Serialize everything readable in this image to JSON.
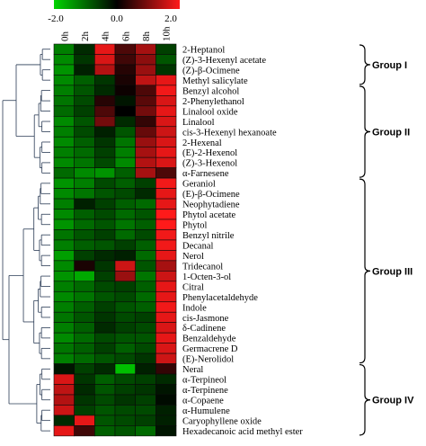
{
  "chart_data": {
    "type": "heatmap",
    "title": "",
    "xlabel": "",
    "ylabel": "",
    "scale": {
      "min": -2.0,
      "max": 2.0,
      "ticks": [
        "-2.0",
        "0.0",
        "2.0"
      ],
      "colors": {
        "low": "#00d400",
        "mid": "#000000",
        "high": "#ff1a1a"
      }
    },
    "columns": [
      "0h",
      "2h",
      "4h",
      "6h",
      "8h",
      "10h"
    ],
    "rows": [
      "2-Heptanol",
      "(Z)-3-Hexenyl acetate",
      "(Z)-β-Ocimene",
      "Methyl salicylate",
      "Benzyl alcohol",
      "2-Phenylethanol",
      "Linalool oxide",
      "Linalool",
      "cis-3-Hexenyl hexanoate",
      "2-Hexenal",
      "(E)-2-Hexenol",
      "(Z)-3-Hexenol",
      "α-Farnesene",
      "Geraniol",
      "(E)-β-Ocimene",
      "Neophytadiene",
      "Phytol acetate",
      "Phytol",
      "Benzyl nitrile",
      "Decanal",
      "Nerol",
      "Tridecanol",
      "1-Octen-3-ol",
      "Citral",
      "Phenylacetaldehyde",
      "Indole",
      "cis-Jasmone",
      "δ-Cadinene",
      "Benzaldehyde",
      "Germacrene D",
      "(E)-Nerolidol",
      "Neral",
      "α-Terpineol",
      "α-Terpinene",
      "α-Copaene",
      "α-Humulene",
      "Caryophyllene oxide",
      "Hexadecanoic acid methyl ester"
    ],
    "values": [
      [
        -1.2,
        -0.4,
        1.8,
        0.6,
        1.3,
        -0.6
      ],
      [
        -1.3,
        -0.5,
        1.7,
        0.5,
        1.1,
        -0.8
      ],
      [
        -1.4,
        -0.3,
        1.4,
        0.3,
        1.2,
        -0.5
      ],
      [
        -1.3,
        -0.9,
        -0.5,
        0.2,
        1.5,
        1.8
      ],
      [
        -1.2,
        -0.8,
        -0.4,
        0.1,
        0.6,
        1.9
      ],
      [
        -1.1,
        -0.7,
        0.3,
        -0.2,
        0.7,
        1.7
      ],
      [
        -1.0,
        -0.6,
        0.6,
        0.0,
        0.9,
        1.8
      ],
      [
        -1.3,
        -0.8,
        0.9,
        -0.4,
        0.4,
        1.7
      ],
      [
        -1.2,
        -0.7,
        -0.3,
        -0.8,
        0.8,
        1.6
      ],
      [
        -1.3,
        -0.9,
        -0.5,
        -1.1,
        1.2,
        1.7
      ],
      [
        -1.2,
        -1.0,
        -0.6,
        -1.2,
        1.3,
        1.8
      ],
      [
        -1.3,
        -1.1,
        -0.7,
        -1.3,
        1.4,
        1.7
      ],
      [
        -1.0,
        -1.3,
        -1.4,
        -0.9,
        1.3,
        0.6
      ],
      [
        -1.4,
        -1.2,
        -0.7,
        -0.9,
        -0.6,
        1.9
      ],
      [
        -1.3,
        -1.1,
        -0.8,
        -0.7,
        -0.4,
        1.8
      ],
      [
        -1.2,
        -0.3,
        -0.6,
        -0.9,
        -1.0,
        1.8
      ],
      [
        -1.3,
        -0.9,
        -0.7,
        -1.0,
        -0.8,
        2.0
      ],
      [
        -1.4,
        -1.0,
        -0.8,
        -1.1,
        -0.9,
        2.0
      ],
      [
        -1.1,
        -0.8,
        -0.6,
        -1.0,
        -0.7,
        1.9
      ],
      [
        -1.2,
        -0.9,
        -0.8,
        -0.6,
        -0.9,
        1.9
      ],
      [
        -1.5,
        -0.6,
        -0.4,
        -0.3,
        -1.0,
        1.8
      ],
      [
        -1.3,
        0.2,
        -0.5,
        1.6,
        -0.8,
        1.3
      ],
      [
        -1.4,
        -1.6,
        -0.6,
        1.2,
        -1.1,
        1.6
      ],
      [
        -1.2,
        -1.0,
        -0.7,
        -0.6,
        -0.9,
        1.8
      ],
      [
        -1.3,
        -1.1,
        -0.8,
        -0.7,
        -1.0,
        1.8
      ],
      [
        -1.2,
        -0.9,
        -0.6,
        -0.8,
        -0.9,
        1.9
      ],
      [
        -1.1,
        -0.8,
        -0.5,
        -0.7,
        -0.6,
        1.8
      ],
      [
        -1.2,
        -0.9,
        -0.4,
        -0.6,
        -0.7,
        1.7
      ],
      [
        -1.3,
        -1.0,
        -0.7,
        -0.8,
        -0.8,
        1.8
      ],
      [
        -1.1,
        -0.9,
        -0.6,
        -0.9,
        -0.7,
        1.7
      ],
      [
        -1.2,
        -1.0,
        -0.8,
        -0.7,
        -0.5,
        1.6
      ],
      [
        -0.2,
        -0.6,
        -0.4,
        -1.8,
        -0.3,
        0.4
      ],
      [
        1.7,
        -0.5,
        -0.9,
        -0.7,
        -0.6,
        -0.4
      ],
      [
        1.5,
        -0.4,
        -0.8,
        -0.6,
        -0.5,
        -0.2
      ],
      [
        1.4,
        -0.5,
        -0.7,
        -0.5,
        -0.6,
        -0.1
      ],
      [
        1.6,
        -0.6,
        -0.8,
        -0.7,
        -0.7,
        -0.3
      ],
      [
        -0.4,
        1.8,
        -0.8,
        -0.7,
        -0.6,
        -0.3
      ],
      [
        1.8,
        0.5,
        -0.9,
        -0.8,
        -1.0,
        -0.2
      ]
    ],
    "groups": [
      {
        "label": "Group I",
        "first_row": 0,
        "last_row": 3
      },
      {
        "label": "Group II",
        "first_row": 4,
        "last_row": 12
      },
      {
        "label": "Group III",
        "first_row": 13,
        "last_row": 30
      },
      {
        "label": "Group IV",
        "first_row": 31,
        "last_row": 37
      }
    ]
  }
}
